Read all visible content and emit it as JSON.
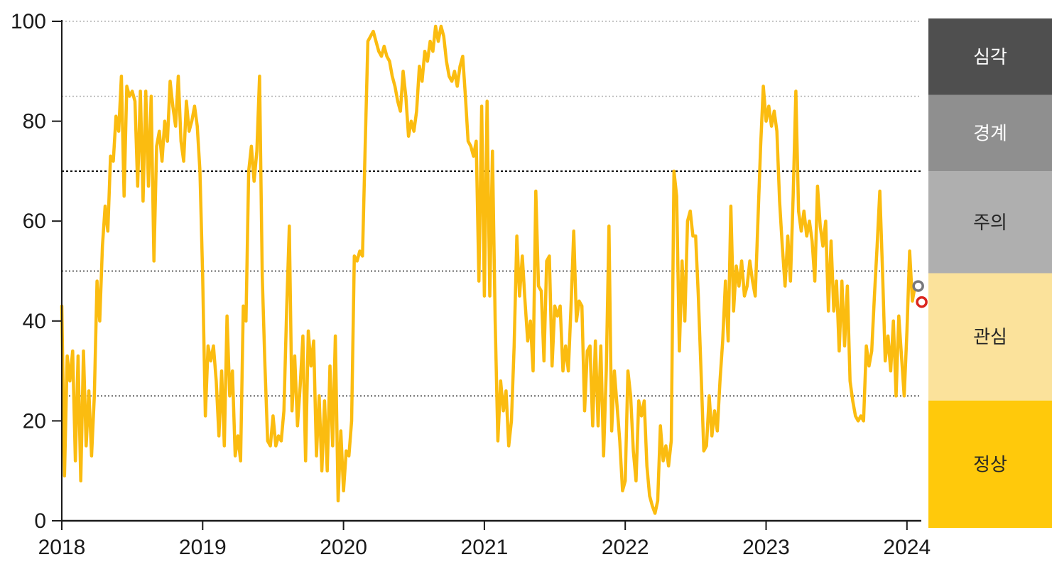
{
  "chart_data": {
    "type": "line",
    "title": "",
    "x_axis": {
      "label": "",
      "ticks": [
        "2018",
        "2019",
        "2020",
        "2021",
        "2022",
        "2023",
        "2024"
      ],
      "tick_values": [
        2018,
        2019,
        2020,
        2021,
        2022,
        2023,
        2024
      ],
      "range": [
        2018,
        2024.1
      ]
    },
    "y_axis": {
      "label": "",
      "ticks": [
        "0",
        "20",
        "40",
        "60",
        "80",
        "100"
      ],
      "tick_values": [
        0,
        20,
        40,
        60,
        80,
        100
      ],
      "range": [
        0,
        100
      ]
    },
    "gridlines": [
      {
        "value": 100,
        "style": "light"
      },
      {
        "value": 85,
        "style": "light"
      },
      {
        "value": 70,
        "style": "darker"
      },
      {
        "value": 50,
        "style": "dark"
      },
      {
        "value": 25,
        "style": "dark"
      }
    ],
    "series": [
      {
        "name": "risk-index",
        "color": "#FBBC10",
        "x_start": 2018,
        "x_step_years": 0.01923,
        "values": [
          43,
          9,
          33,
          28,
          34,
          12,
          33,
          8,
          34,
          15,
          26,
          13,
          25,
          48,
          40,
          55,
          63,
          58,
          73,
          72,
          81,
          78,
          89,
          65,
          87,
          85,
          86,
          84,
          67,
          86,
          64,
          86,
          67,
          85,
          52,
          75,
          78,
          72,
          80,
          76,
          88,
          83,
          79,
          89,
          76,
          72,
          84,
          78,
          80,
          83,
          79,
          70,
          49,
          21,
          35,
          32,
          35,
          28,
          17,
          30,
          15,
          41,
          25,
          30,
          13,
          17,
          12,
          43,
          40,
          70,
          75,
          68,
          74,
          89,
          49,
          31,
          16,
          15,
          21,
          15,
          17,
          16,
          22,
          42,
          59,
          22,
          33,
          19,
          27,
          37,
          12,
          38,
          31,
          36,
          13,
          25,
          10,
          24,
          10,
          31,
          15,
          37,
          4,
          18,
          6,
          14,
          13,
          20,
          53,
          52,
          54,
          53,
          75,
          96,
          97,
          98,
          96,
          94,
          93,
          95,
          93,
          92,
          89,
          87,
          84,
          82,
          90,
          85,
          77,
          80,
          78,
          82,
          91,
          88,
          94,
          92,
          96,
          94,
          99,
          96,
          99,
          97,
          92,
          89,
          88,
          90,
          87,
          91,
          93,
          85,
          76,
          75,
          73,
          76,
          48,
          83,
          45,
          84,
          45,
          74,
          40,
          16,
          28,
          22,
          26,
          15,
          20,
          35,
          57,
          45,
          53,
          44,
          36,
          40,
          30,
          66,
          47,
          46,
          32,
          52,
          53,
          31,
          43,
          41,
          43,
          30,
          35,
          30,
          43,
          58,
          40,
          44,
          43,
          22,
          34,
          35,
          19,
          36,
          19,
          35,
          13,
          30,
          59,
          18,
          30,
          23,
          16,
          6,
          8,
          30,
          25,
          14,
          8,
          24,
          21,
          24,
          11,
          5,
          3,
          1.5,
          4,
          19,
          12,
          15,
          11,
          16,
          70,
          65,
          34,
          52,
          40,
          60,
          62,
          57,
          57,
          45,
          30,
          14,
          15,
          25,
          17,
          22,
          18,
          28,
          36,
          48,
          36,
          63,
          42,
          51,
          47,
          52,
          45,
          47,
          52,
          48,
          45,
          60,
          75,
          87,
          80,
          83,
          79,
          82,
          78,
          64,
          55,
          47,
          57,
          48,
          65,
          86,
          62,
          58,
          62,
          57,
          60,
          56,
          48,
          67,
          59,
          55,
          60,
          42,
          56,
          42,
          48,
          34,
          48,
          35,
          47,
          28,
          24,
          21,
          20,
          21,
          20,
          35,
          31,
          34,
          45,
          55,
          66,
          50,
          32,
          37,
          30,
          40,
          25,
          41,
          33,
          25,
          38,
          54,
          44,
          47
        ]
      }
    ],
    "markers": [
      {
        "name": "latest-marker-gray",
        "x": 2024.08,
        "value": 47,
        "color": "#77787B"
      },
      {
        "name": "latest-marker-red",
        "x": 2024.105,
        "value": 43.8,
        "color": "#DA251D"
      }
    ],
    "bands": [
      {
        "label": "심각",
        "from": 85,
        "to": 100,
        "bg": "#4F4F4F",
        "fg": "#FFFFFF"
      },
      {
        "label": "경계",
        "from": 70,
        "to": 85,
        "bg": "#8F8F8F",
        "fg": "#FFFFFF"
      },
      {
        "label": "주의",
        "from": 50,
        "to": 70,
        "bg": "#AFAFAF",
        "fg": "#262626"
      },
      {
        "label": "관심",
        "from": 25,
        "to": 50,
        "bg": "#FBE29B",
        "fg": "#262626"
      },
      {
        "label": "정상",
        "from": 0,
        "to": 25,
        "bg": "#FFC90B",
        "fg": "#262626"
      }
    ],
    "colors": {
      "axis": "#1a1a1a",
      "grid_light": "#b3b3b3",
      "grid_dark": "#4d4d4d",
      "grid_darker": "#1a1a1a",
      "tick_label": "#1a1a1a"
    }
  }
}
